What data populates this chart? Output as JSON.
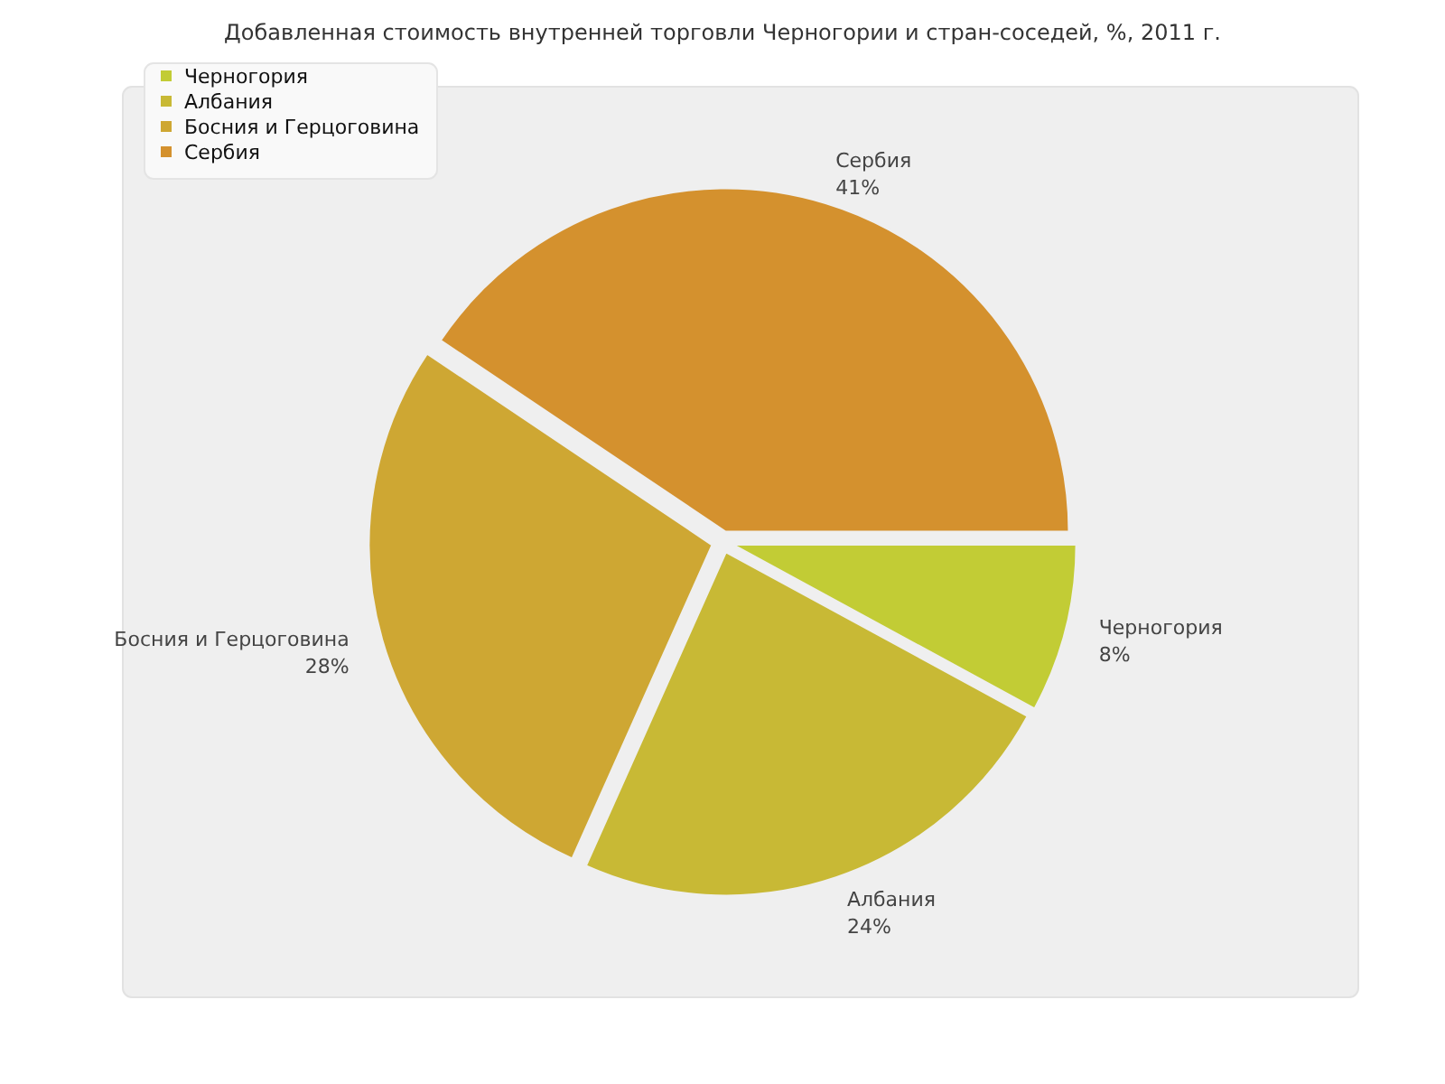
{
  "chart_data": {
    "type": "pie",
    "title": "Добавленная стоимость внутренней торговли Черногории и стран-соседей, %, 2011 г.",
    "categories": [
      "Черногория",
      "Албания",
      "Босния и Герцоговина",
      "Сербия"
    ],
    "values": [
      8,
      24,
      28,
      41
    ],
    "value_labels": [
      "8%",
      "24%",
      "28%",
      "41%"
    ],
    "colors": [
      "#c2cc35",
      "#c8b935",
      "#cea733",
      "#d4912e"
    ],
    "legend": "top left"
  }
}
